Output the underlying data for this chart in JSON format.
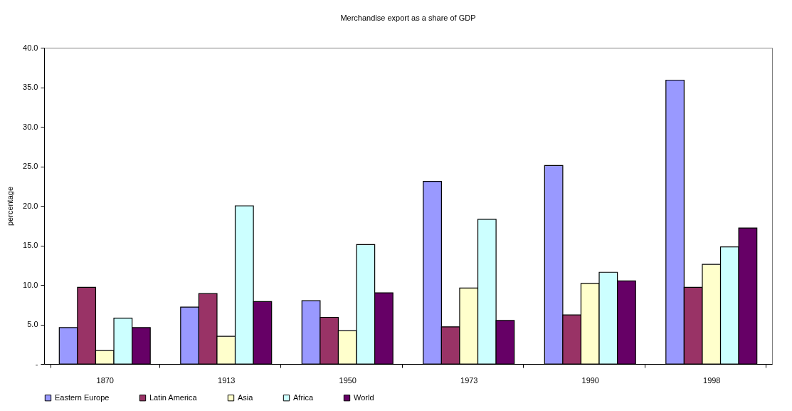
{
  "chart_data": {
    "type": "bar",
    "title": "Merchandise export as a share of GDP",
    "ylabel": "percentage",
    "categories": [
      "1870",
      "1913",
      "1950",
      "1973",
      "1990",
      "1998"
    ],
    "series": [
      {
        "name": "Eastern Europe",
        "color": "#9999ff",
        "values": [
          4.6,
          7.2,
          8.0,
          23.1,
          25.1,
          35.9
        ]
      },
      {
        "name": "Latin America",
        "color": "#993366",
        "values": [
          9.7,
          8.9,
          5.9,
          4.7,
          6.2,
          9.7
        ]
      },
      {
        "name": "Asia",
        "color": "#ffffcc",
        "values": [
          1.7,
          3.5,
          4.2,
          9.6,
          10.2,
          12.6
        ]
      },
      {
        "name": "Africa",
        "color": "#ccffff",
        "values": [
          5.8,
          20.0,
          15.1,
          18.3,
          11.6,
          14.8
        ]
      },
      {
        "name": "World",
        "color": "#660066",
        "values": [
          4.6,
          7.9,
          9.0,
          5.5,
          10.5,
          17.2
        ]
      }
    ],
    "ylim": [
      0,
      40
    ],
    "yticks": [
      {
        "value": 0,
        "label": "-"
      },
      {
        "value": 5,
        "label": "5.0"
      },
      {
        "value": 10,
        "label": "10.0"
      },
      {
        "value": 15,
        "label": "15.0"
      },
      {
        "value": 20,
        "label": "20.0"
      },
      {
        "value": 25,
        "label": "25.0"
      },
      {
        "value": 30,
        "label": "30.0"
      },
      {
        "value": 35,
        "label": "35.0"
      },
      {
        "value": 40,
        "label": "40.0"
      }
    ],
    "grid": false,
    "legend": "bottom"
  }
}
